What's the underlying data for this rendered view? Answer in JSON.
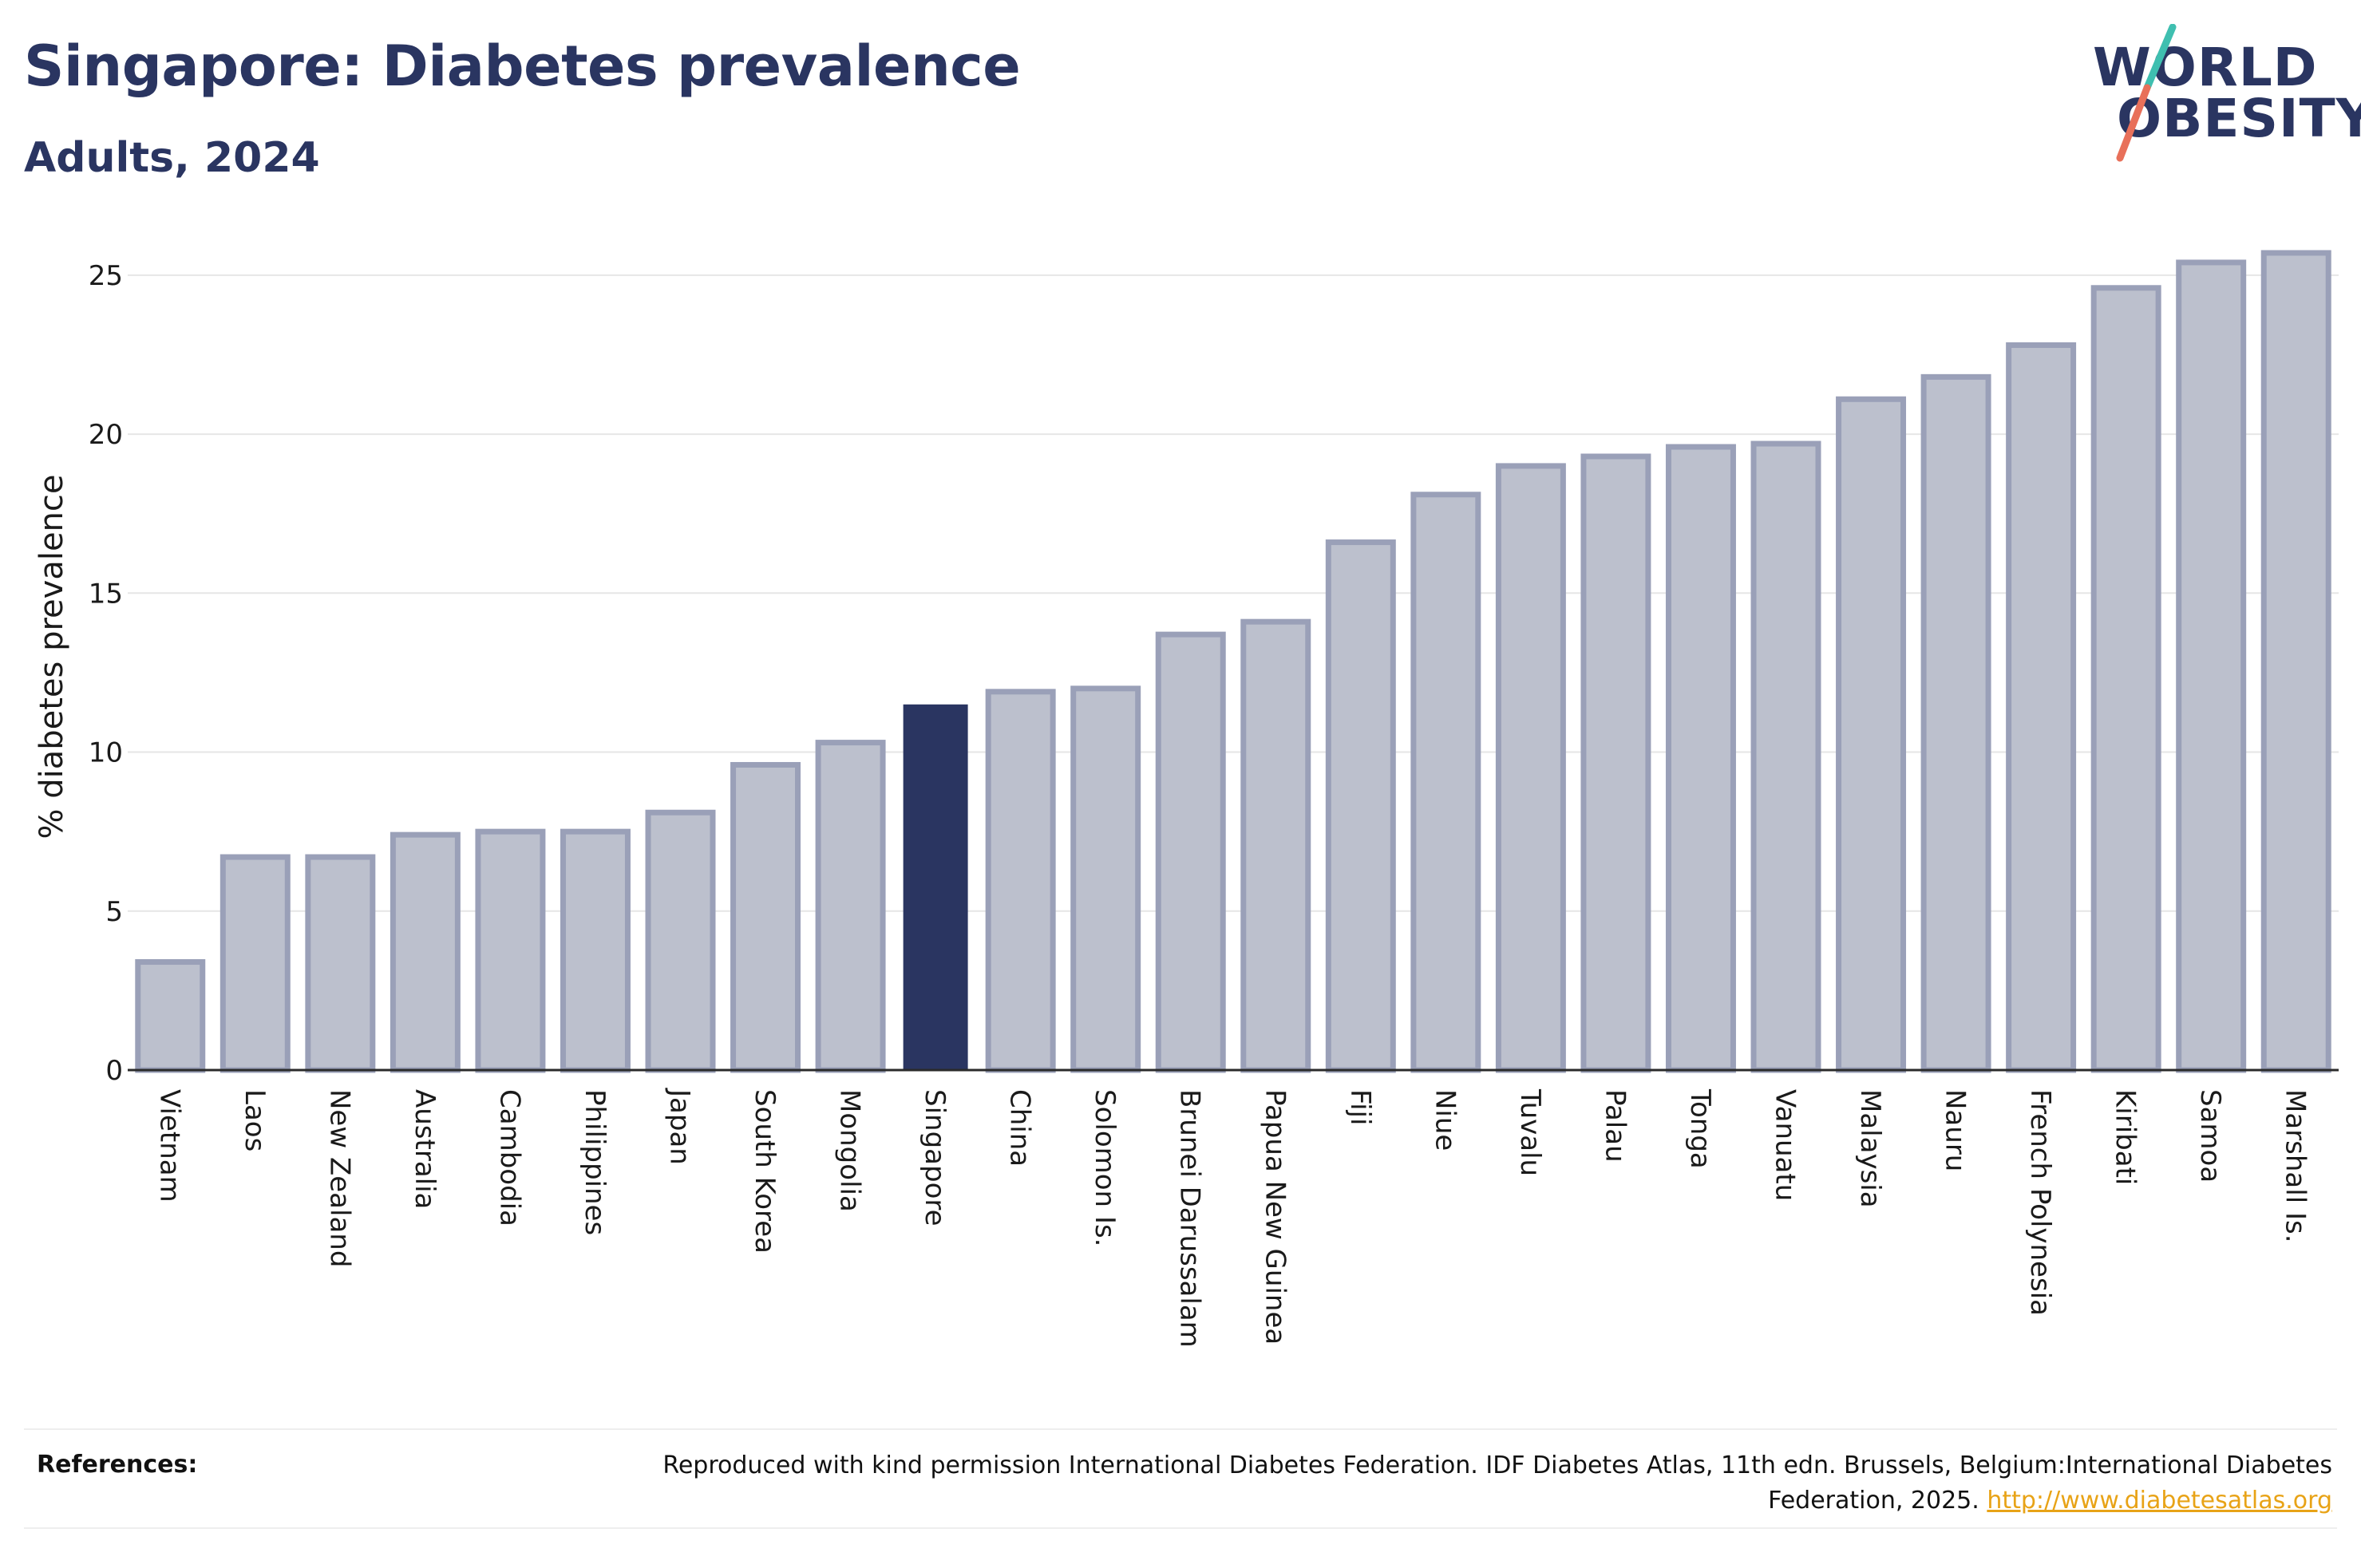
{
  "header": {
    "title": "Singapore: Diabetes prevalence",
    "subtitle": "Adults, 2024"
  },
  "logo": {
    "line1": "WORLD",
    "line2": "OBESITY",
    "slash_colors": [
      "#3fbfb0",
      "#e8705a"
    ]
  },
  "chart_data": {
    "type": "bar",
    "ylabel": "% diabetes prevalence",
    "ylim": [
      0,
      26
    ],
    "yticks": [
      0,
      5,
      10,
      15,
      20,
      25
    ],
    "grid": true,
    "highlight": "Singapore",
    "colors": {
      "bar": "#bcc0cd",
      "bar_edge": "#9aa0b8",
      "highlight": "#2a3561"
    },
    "categories": [
      "Vietnam",
      "Laos",
      "New Zealand",
      "Australia",
      "Cambodia",
      "Philippines",
      "Japan",
      "South Korea",
      "Mongolia",
      "Singapore",
      "China",
      "Solomon Is.",
      "Brunei Darussalam",
      "Papua New Guinea",
      "Fiji",
      "Niue",
      "Tuvalu",
      "Palau",
      "Tonga",
      "Vanuatu",
      "Malaysia",
      "Nauru",
      "French Polynesia",
      "Kiribati",
      "Samoa",
      "Marshall Is."
    ],
    "values": [
      3.4,
      6.7,
      6.7,
      7.4,
      7.5,
      7.5,
      8.1,
      9.6,
      10.3,
      11.5,
      11.9,
      12.0,
      13.7,
      14.1,
      16.6,
      18.1,
      19.0,
      19.3,
      19.6,
      19.7,
      21.1,
      21.8,
      22.8,
      24.6,
      25.4,
      25.7
    ]
  },
  "footer": {
    "label": "References:",
    "text": "Reproduced with kind permission International Diabetes Federation. IDF Diabetes Atlas, 11th edn. Brussels, Belgium:International Diabetes Federation, 2025.",
    "link": "http://www.diabetesatlas.org"
  }
}
